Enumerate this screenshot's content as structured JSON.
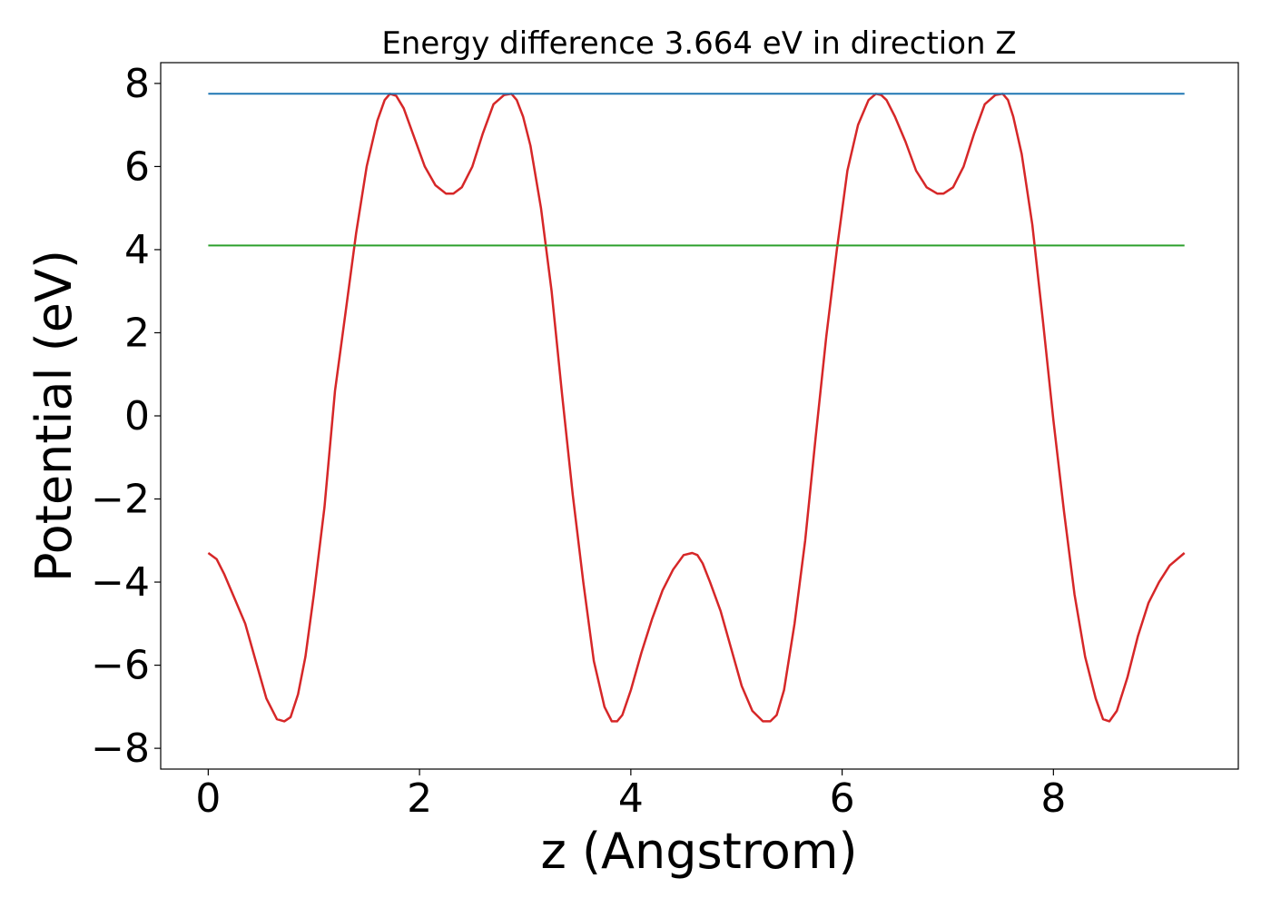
{
  "chart_data": {
    "type": "line",
    "title": "Energy difference 3.664 eV in direction Z",
    "xlabel": "z (Angstrom)",
    "ylabel": "Potential (eV)",
    "xlim": [
      -0.45,
      9.75
    ],
    "ylim": [
      -8.5,
      8.5
    ],
    "xticks": [
      0,
      2,
      4,
      6,
      8
    ],
    "yticks": [
      -8,
      -6,
      -4,
      -2,
      0,
      2,
      4,
      6,
      8
    ],
    "xtick_labels": [
      "0",
      "2",
      "4",
      "6",
      "8"
    ],
    "ytick_labels": [
      "−8",
      "−6",
      "−4",
      "−2",
      "0",
      "2",
      "4",
      "6",
      "8"
    ],
    "grid": false,
    "series": [
      {
        "color": "#d62728",
        "x": [
          0.0,
          0.08,
          0.15,
          0.25,
          0.35,
          0.45,
          0.55,
          0.65,
          0.72,
          0.78,
          0.85,
          0.92,
          1.0,
          1.1,
          1.2,
          1.3,
          1.4,
          1.5,
          1.6,
          1.67,
          1.72,
          1.78,
          1.85,
          1.95,
          2.05,
          2.15,
          2.25,
          2.32,
          2.4,
          2.5,
          2.6,
          2.7,
          2.8,
          2.87,
          2.92,
          2.98,
          3.05,
          3.15,
          3.25,
          3.35,
          3.45,
          3.55,
          3.65,
          3.75,
          3.82,
          3.87,
          3.92,
          4.0,
          4.1,
          4.2,
          4.3,
          4.4,
          4.5,
          4.58,
          4.63,
          4.68,
          4.75,
          4.85,
          4.95,
          5.05,
          5.15,
          5.25,
          5.32,
          5.38,
          5.45,
          5.55,
          5.65,
          5.75,
          5.85,
          5.95,
          6.05,
          6.15,
          6.25,
          6.32,
          6.37,
          6.42,
          6.5,
          6.6,
          6.7,
          6.8,
          6.9,
          6.96,
          7.05,
          7.15,
          7.25,
          7.35,
          7.45,
          7.52,
          7.57,
          7.62,
          7.7,
          7.8,
          7.9,
          8.0,
          8.1,
          8.2,
          8.3,
          8.4,
          8.47,
          8.53,
          8.6,
          8.7,
          8.8,
          8.9,
          9.0,
          9.1,
          9.24
        ],
        "y": [
          -3.3,
          -3.45,
          -3.8,
          -4.4,
          -5.0,
          -5.9,
          -6.8,
          -7.3,
          -7.35,
          -7.25,
          -6.7,
          -5.8,
          -4.3,
          -2.2,
          0.6,
          2.5,
          4.4,
          6.0,
          7.1,
          7.6,
          7.75,
          7.7,
          7.4,
          6.7,
          6.0,
          5.55,
          5.35,
          5.35,
          5.5,
          6.0,
          6.8,
          7.5,
          7.72,
          7.75,
          7.6,
          7.2,
          6.5,
          5.0,
          3.0,
          0.5,
          -1.9,
          -4.0,
          -5.9,
          -7.0,
          -7.35,
          -7.35,
          -7.2,
          -6.6,
          -5.7,
          -4.9,
          -4.2,
          -3.7,
          -3.35,
          -3.3,
          -3.35,
          -3.55,
          -4.0,
          -4.7,
          -5.6,
          -6.5,
          -7.1,
          -7.35,
          -7.35,
          -7.2,
          -6.6,
          -5.0,
          -3.0,
          -0.5,
          1.9,
          4.0,
          5.9,
          7.0,
          7.6,
          7.75,
          7.72,
          7.6,
          7.2,
          6.6,
          5.9,
          5.5,
          5.35,
          5.35,
          5.5,
          6.0,
          6.8,
          7.5,
          7.72,
          7.75,
          7.6,
          7.2,
          6.3,
          4.6,
          2.3,
          -0.1,
          -2.3,
          -4.3,
          -5.8,
          -6.8,
          -7.3,
          -7.35,
          -7.1,
          -6.3,
          -5.3,
          -4.5,
          -4.0,
          -3.6,
          -3.3
        ]
      },
      {
        "color": "#1f77b4",
        "x": [
          0.0,
          9.24
        ],
        "y": [
          7.75,
          7.75
        ]
      },
      {
        "color": "#2ca02c",
        "x": [
          0.0,
          9.24
        ],
        "y": [
          4.1,
          4.1
        ]
      }
    ]
  }
}
